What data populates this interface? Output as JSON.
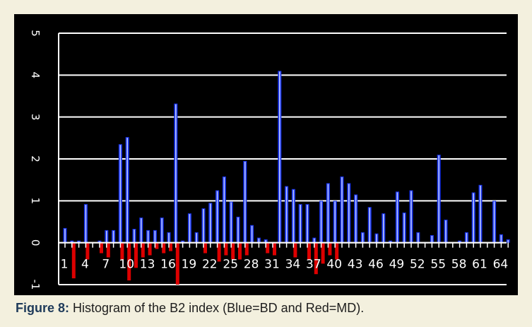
{
  "caption": {
    "label": "Figure 8:",
    "text": " Histogram of the B2 index (Blue=BD and Red=MD)."
  },
  "chart_data": {
    "type": "bar",
    "ylim": [
      -1,
      5
    ],
    "yticks": [
      "-1",
      "0",
      "1",
      "2",
      "3",
      "4",
      "5"
    ],
    "xticks": [
      "1",
      "4",
      "7",
      "10",
      "13",
      "16",
      "19",
      "22",
      "25",
      "28",
      "31",
      "34",
      "37",
      "40",
      "43",
      "46",
      "49",
      "52",
      "55",
      "58",
      "61",
      "64"
    ],
    "grid": true,
    "colors": {
      "blue": "#1a35ee",
      "red": "#dd0000",
      "background": "#000000",
      "grid": "#ffffff"
    },
    "series": [
      {
        "color": "blue",
        "values": [
          0.35,
          0.05,
          0.05,
          0.92,
          0.0,
          0.05,
          0.3,
          0.3,
          2.35,
          2.52,
          0.33,
          0.6,
          0.3,
          0.3,
          0.6,
          0.25,
          3.32,
          0.05,
          0.7,
          0.25,
          0.82,
          0.95,
          1.25,
          1.58,
          0.98,
          0.62,
          1.95,
          0.42,
          0.12,
          0.08,
          0.0,
          4.1,
          1.35,
          1.28,
          0.92,
          0.92,
          0.12,
          1.0,
          1.42,
          1.0,
          1.58,
          1.42,
          1.15,
          0.25,
          0.85,
          0.22,
          0.7,
          0.05,
          1.22,
          0.72,
          1.25,
          0.25,
          0.0,
          0.18,
          2.1,
          0.55,
          0.0,
          0.05,
          0.25,
          1.2,
          1.38,
          0.0,
          1.0,
          0.2,
          0.08
        ]
      },
      {
        "color": "red",
        "values": [
          0.0,
          -0.85,
          0.0,
          -0.4,
          0.0,
          -0.25,
          -0.35,
          0.0,
          -0.4,
          -0.9,
          -0.6,
          -0.35,
          -0.3,
          -0.15,
          -0.25,
          -0.2,
          -1.0,
          0.0,
          0.0,
          0.0,
          -0.25,
          0.0,
          -0.45,
          -0.3,
          -0.4,
          -0.4,
          -0.3,
          0.0,
          0.0,
          -0.25,
          -0.3,
          0.0,
          0.0,
          -0.35,
          0.0,
          -0.4,
          -0.75,
          -0.5,
          -0.3,
          -0.4,
          0.0,
          0.0,
          0.0,
          0.0,
          0.0,
          0.0,
          0.0,
          0.0,
          0.0,
          0.0,
          0.0,
          0.0,
          0.0,
          0.0,
          0.0,
          0.0,
          0.0,
          0.0,
          0.0,
          0.0,
          0.0,
          0.0,
          0.0,
          0.0,
          0.0
        ]
      }
    ]
  }
}
